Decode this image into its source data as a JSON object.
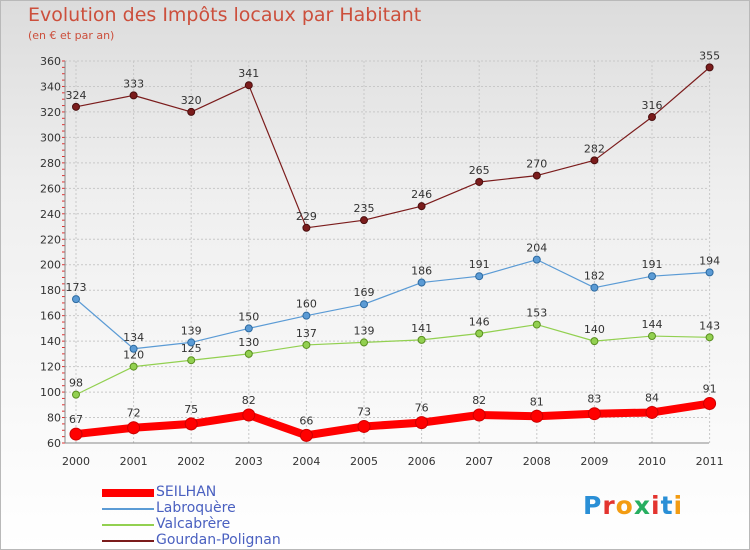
{
  "chart_data": {
    "type": "line",
    "title": "Evolution des Impôts locaux par Habitant",
    "subtitle": "(en € et par an)",
    "categories": [
      "2000",
      "2001",
      "2002",
      "2003",
      "2004",
      "2005",
      "2006",
      "2007",
      "2008",
      "2009",
      "2010",
      "2011"
    ],
    "ylim": [
      60,
      360
    ],
    "yticks": [
      60,
      80,
      100,
      120,
      140,
      160,
      180,
      200,
      220,
      240,
      260,
      280,
      300,
      320,
      340,
      360
    ],
    "grid": true,
    "legend_position": "bottom-left",
    "series": [
      {
        "name": "SEILHAN",
        "color": "#ff0000",
        "values": [
          67,
          72,
          75,
          82,
          66,
          73,
          76,
          82,
          81,
          83,
          84,
          91
        ]
      },
      {
        "name": "Labroquère",
        "color": "#5b9bd5",
        "values": [
          173,
          134,
          139,
          150,
          160,
          169,
          186,
          191,
          204,
          182,
          191,
          194
        ]
      },
      {
        "name": "Valcabrère",
        "color": "#92d050",
        "values": [
          98,
          120,
          125,
          130,
          137,
          139,
          141,
          146,
          153,
          140,
          144,
          143
        ]
      },
      {
        "name": "Gourdan-Polignan",
        "color": "#7b1c1c",
        "values": [
          324,
          333,
          320,
          341,
          229,
          235,
          246,
          265,
          270,
          282,
          316,
          355
        ]
      }
    ]
  },
  "logo": {
    "letters": [
      "P",
      "r",
      "o",
      "x",
      "i",
      "t",
      "i"
    ],
    "colors": [
      "#2a8fd6",
      "#e3342f",
      "#f39c12",
      "#27ae60",
      "#e3342f",
      "#2a8fd6",
      "#f39c12"
    ]
  }
}
